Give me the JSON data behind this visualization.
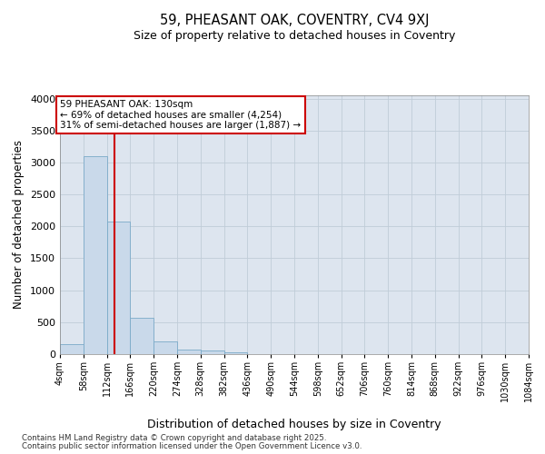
{
  "title": "59, PHEASANT OAK, COVENTRY, CV4 9XJ",
  "subtitle": "Size of property relative to detached houses in Coventry",
  "xlabel": "Distribution of detached houses by size in Coventry",
  "ylabel": "Number of detached properties",
  "tick_labels": [
    "4sqm",
    "58sqm",
    "112sqm",
    "166sqm",
    "220sqm",
    "274sqm",
    "328sqm",
    "382sqm",
    "436sqm",
    "490sqm",
    "544sqm",
    "598sqm",
    "652sqm",
    "706sqm",
    "760sqm",
    "814sqm",
    "868sqm",
    "922sqm",
    "976sqm",
    "1030sqm",
    "1084sqm"
  ],
  "bin_edges": [
    4,
    58,
    112,
    166,
    220,
    274,
    328,
    382,
    436,
    490,
    544,
    598,
    652,
    706,
    760,
    814,
    868,
    922,
    976,
    1030,
    1084
  ],
  "bar_heights": [
    150,
    3100,
    2070,
    575,
    195,
    75,
    50,
    35,
    0,
    0,
    0,
    0,
    0,
    0,
    0,
    0,
    0,
    0,
    0,
    0
  ],
  "bar_color": "#c9d9ea",
  "bar_edge_color": "#7aaac8",
  "grid_color": "#c0ccd8",
  "background_color": "#dde5ef",
  "vline_x": 130,
  "vline_color": "#cc0000",
  "annotation_text": "59 PHEASANT OAK: 130sqm\n← 69% of detached houses are smaller (4,254)\n31% of semi-detached houses are larger (1,887) →",
  "annotation_box_edge_color": "#cc0000",
  "ylim": [
    0,
    4050
  ],
  "yticks": [
    0,
    500,
    1000,
    1500,
    2000,
    2500,
    3000,
    3500,
    4000
  ],
  "footnote1": "Contains HM Land Registry data © Crown copyright and database right 2025.",
  "footnote2": "Contains public sector information licensed under the Open Government Licence v3.0."
}
